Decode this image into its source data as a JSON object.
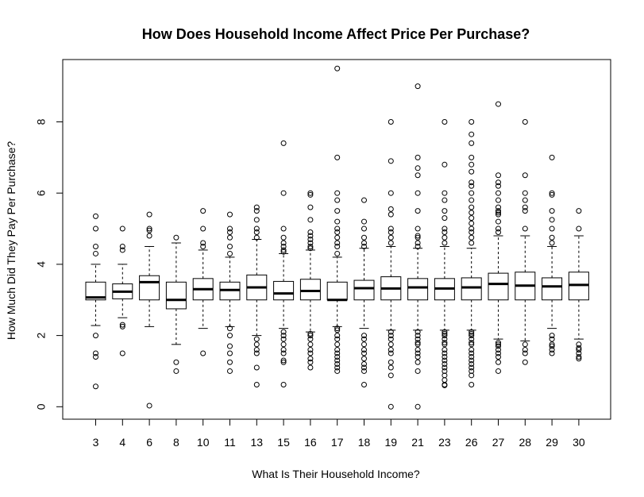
{
  "chart_data": {
    "type": "boxplot",
    "title": "How Does Household Income Affect Price Per Purchase?",
    "xlabel": "What Is Their Household Income?",
    "ylabel": "How Much Did They Pay Per Purchase?",
    "ylim": [
      -0.35,
      9.75
    ],
    "yticks": [
      0,
      2,
      4,
      6,
      8
    ],
    "grid": false,
    "legend": "none",
    "categories": [
      "3",
      "4",
      "6",
      "8",
      "10",
      "11",
      "13",
      "15",
      "16",
      "17",
      "18",
      "19",
      "21",
      "23",
      "26",
      "27",
      "28",
      "29",
      "30"
    ],
    "boxes": [
      {
        "category": "3",
        "whisker_low": 2.28,
        "q1": 3.0,
        "median": 3.07,
        "q3": 3.5,
        "whisker_high": 4.0,
        "outliers": [
          5.35,
          5.0,
          4.5,
          4.3,
          2.0,
          1.5,
          1.4,
          0.57
        ]
      },
      {
        "category": "4",
        "whisker_low": 2.5,
        "q1": 3.03,
        "median": 3.23,
        "q3": 3.45,
        "whisker_high": 4.0,
        "outliers": [
          5.0,
          4.5,
          4.4,
          2.3,
          2.25,
          1.5
        ]
      },
      {
        "category": "6",
        "whisker_low": 2.25,
        "q1": 3.0,
        "median": 3.5,
        "q3": 3.68,
        "whisker_high": 4.5,
        "outliers": [
          5.4,
          5.0,
          4.95,
          4.8,
          0.03
        ]
      },
      {
        "category": "8",
        "whisker_low": 1.75,
        "q1": 2.75,
        "median": 3.0,
        "q3": 3.5,
        "whisker_high": 4.6,
        "outliers": [
          4.75,
          1.25,
          1.0
        ]
      },
      {
        "category": "10",
        "whisker_low": 2.2,
        "q1": 3.0,
        "median": 3.3,
        "q3": 3.6,
        "whisker_high": 4.4,
        "outliers": [
          5.5,
          5.0,
          4.6,
          4.5,
          1.5
        ]
      },
      {
        "category": "11",
        "whisker_low": 2.25,
        "q1": 3.0,
        "median": 3.28,
        "q3": 3.5,
        "whisker_high": 4.2,
        "outliers": [
          5.4,
          5.0,
          4.9,
          4.75,
          4.5,
          4.3,
          2.2,
          2.0,
          1.7,
          1.5,
          1.25,
          1.0
        ]
      },
      {
        "category": "13",
        "whisker_low": 2.0,
        "q1": 3.0,
        "median": 3.35,
        "q3": 3.7,
        "whisker_high": 4.7,
        "outliers": [
          5.6,
          5.5,
          5.25,
          5.0,
          4.9,
          4.75,
          1.9,
          1.75,
          1.6,
          1.5,
          1.1,
          0.62
        ]
      },
      {
        "category": "15",
        "whisker_low": 2.2,
        "q1": 3.0,
        "median": 3.18,
        "q3": 3.52,
        "whisker_high": 4.3,
        "outliers": [
          7.4,
          6.0,
          5.0,
          4.75,
          4.6,
          4.5,
          4.4,
          4.35,
          2.1,
          2.0,
          1.9,
          1.75,
          1.6,
          1.5,
          1.3,
          1.25,
          0.62
        ]
      },
      {
        "category": "16",
        "whisker_low": 2.1,
        "q1": 3.0,
        "median": 3.25,
        "q3": 3.58,
        "whisker_high": 4.4,
        "outliers": [
          6.0,
          5.95,
          5.6,
          5.25,
          4.9,
          4.8,
          4.7,
          4.6,
          4.5,
          4.45,
          2.05,
          2.0,
          1.9,
          1.75,
          1.6,
          1.5,
          1.35,
          1.25,
          1.1
        ]
      },
      {
        "category": "17",
        "whisker_low": 2.25,
        "q1": 3.0,
        "median": 3.0,
        "q3": 3.5,
        "whisker_high": 4.2,
        "outliers": [
          9.5,
          7.0,
          6.0,
          5.8,
          5.5,
          5.2,
          5.0,
          4.9,
          4.75,
          4.6,
          4.5,
          4.3,
          2.2,
          2.15,
          2.0,
          1.9,
          1.75,
          1.6,
          1.5,
          1.4,
          1.3,
          1.2,
          1.1,
          1.0
        ]
      },
      {
        "category": "18",
        "whisker_low": 2.2,
        "q1": 3.0,
        "median": 3.33,
        "q3": 3.55,
        "whisker_high": 4.45,
        "outliers": [
          5.8,
          5.2,
          5.0,
          4.75,
          4.6,
          4.5,
          2.0,
          1.9,
          1.75,
          1.6,
          1.5,
          1.35,
          1.2,
          1.1,
          1.0,
          0.62
        ]
      },
      {
        "category": "19",
        "whisker_low": 2.15,
        "q1": 3.0,
        "median": 3.32,
        "q3": 3.65,
        "whisker_high": 4.5,
        "outliers": [
          8.0,
          6.9,
          6.0,
          5.55,
          5.4,
          5.0,
          4.9,
          4.75,
          4.6,
          2.1,
          2.0,
          1.9,
          1.75,
          1.6,
          1.5,
          1.25,
          1.1,
          0.88,
          0.0
        ]
      },
      {
        "category": "21",
        "whisker_low": 2.15,
        "q1": 3.0,
        "median": 3.35,
        "q3": 3.6,
        "whisker_high": 4.45,
        "outliers": [
          9.0,
          7.0,
          6.7,
          6.5,
          6.0,
          5.5,
          5.0,
          4.8,
          4.75,
          4.6,
          4.5,
          2.1,
          2.0,
          1.9,
          1.8,
          1.75,
          1.6,
          1.5,
          1.4,
          1.25,
          1.0,
          0.0
        ]
      },
      {
        "category": "23",
        "whisker_low": 2.15,
        "q1": 3.0,
        "median": 3.32,
        "q3": 3.6,
        "whisker_high": 4.5,
        "outliers": [
          8.0,
          6.8,
          6.0,
          5.8,
          5.5,
          5.3,
          5.0,
          4.9,
          4.75,
          4.6,
          2.1,
          2.05,
          2.0,
          1.9,
          1.8,
          1.75,
          1.6,
          1.5,
          1.4,
          1.3,
          1.2,
          1.1,
          1.0,
          0.88,
          0.75,
          0.62,
          0.6
        ]
      },
      {
        "category": "26",
        "whisker_low": 2.15,
        "q1": 3.0,
        "median": 3.35,
        "q3": 3.62,
        "whisker_high": 4.45,
        "outliers": [
          8.0,
          7.65,
          7.4,
          7.0,
          6.8,
          6.6,
          6.3,
          6.2,
          6.0,
          5.8,
          5.6,
          5.45,
          5.3,
          5.15,
          5.0,
          4.9,
          4.75,
          4.6,
          2.1,
          2.05,
          2.0,
          1.9,
          1.8,
          1.75,
          1.6,
          1.5,
          1.4,
          1.3,
          1.2,
          1.1,
          1.0,
          0.88,
          0.62
        ]
      },
      {
        "category": "27",
        "whisker_low": 1.9,
        "q1": 3.0,
        "median": 3.45,
        "q3": 3.75,
        "whisker_high": 4.8,
        "outliers": [
          8.5,
          6.5,
          6.3,
          6.2,
          6.0,
          5.8,
          5.6,
          5.5,
          5.45,
          5.4,
          5.2,
          5.0,
          4.9,
          1.8,
          1.75,
          1.7,
          1.6,
          1.5,
          1.4,
          1.25,
          1.0
        ]
      },
      {
        "category": "28",
        "whisker_low": 1.85,
        "q1": 3.0,
        "median": 3.4,
        "q3": 3.78,
        "whisker_high": 4.8,
        "outliers": [
          8.0,
          6.5,
          6.0,
          5.8,
          5.6,
          5.5,
          5.0,
          1.75,
          1.6,
          1.5,
          1.25
        ]
      },
      {
        "category": "29",
        "whisker_low": 2.2,
        "q1": 3.0,
        "median": 3.38,
        "q3": 3.62,
        "whisker_high": 4.5,
        "outliers": [
          7.0,
          6.0,
          5.95,
          5.5,
          5.25,
          5.0,
          4.75,
          4.6,
          2.0,
          1.9,
          1.75,
          1.7,
          1.6,
          1.5
        ]
      },
      {
        "category": "30",
        "whisker_low": 1.9,
        "q1": 3.0,
        "median": 3.42,
        "q3": 3.78,
        "whisker_high": 4.8,
        "outliers": [
          5.5,
          5.0,
          1.75,
          1.65,
          1.6,
          1.5,
          1.4,
          1.35
        ]
      }
    ]
  }
}
